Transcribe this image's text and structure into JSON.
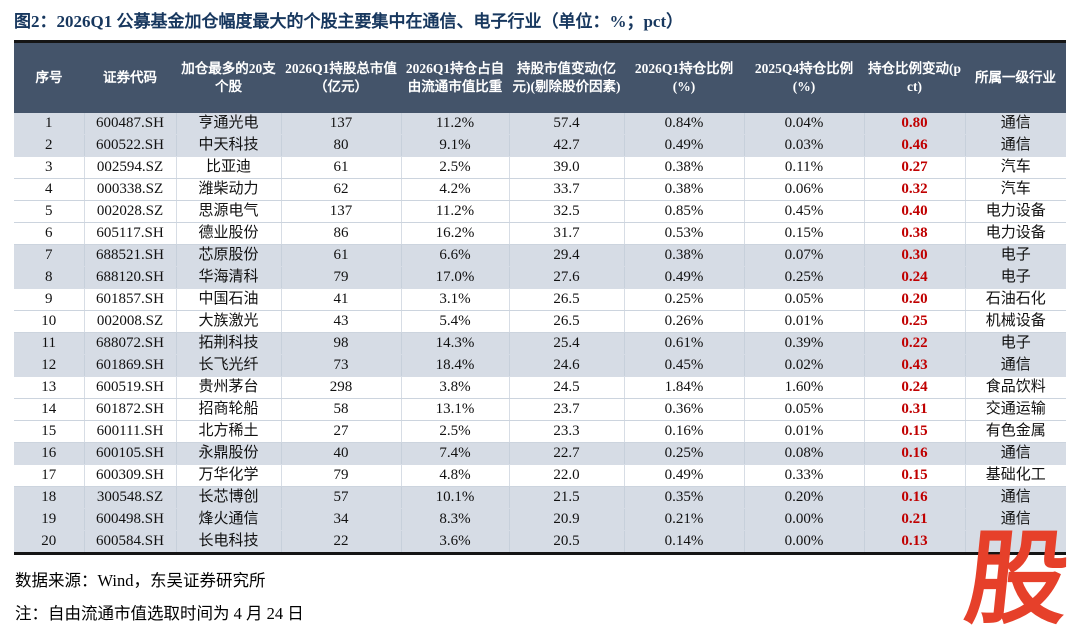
{
  "figure": {
    "title": "图2：2026Q1 公募基金加仓幅度最大的个股主要集中在通信、电子行业（单位：%；pct）",
    "source": "数据来源：Wind，东吴证券研究所",
    "note": "注：自由流通市值选取时间为 4 月 24 日",
    "logo_char": "股"
  },
  "colors": {
    "title_navy": "#17375E",
    "header_bg": "#44546A",
    "header_text": "#FFFFFF",
    "row_shaded": "#D6DCE5",
    "accent_red": "#C00000",
    "logo_red": "#E6402A"
  },
  "table": {
    "column_keys": [
      "no",
      "code",
      "name",
      "mktcap",
      "free_float_pct",
      "mv_change",
      "q1_pct",
      "q4_pct",
      "change_pct",
      "industry"
    ],
    "columns": [
      {
        "key": "no",
        "label": "序号"
      },
      {
        "key": "code",
        "label": "证券代码"
      },
      {
        "key": "name",
        "label": "加仓最多的20支个股"
      },
      {
        "key": "mktcap",
        "label": "2026Q1持股总市值（亿元）"
      },
      {
        "key": "free_float_pct",
        "label": "2026Q1持仓占自由流通市值比重"
      },
      {
        "key": "mv_change",
        "label": "持股市值变动(亿元)(剔除股价因素)"
      },
      {
        "key": "q1_pct",
        "label": "2026Q1持仓比例(%)"
      },
      {
        "key": "q4_pct",
        "label": "2025Q4持仓比例(%)"
      },
      {
        "key": "change_pct",
        "label": "持仓比例变动(pct)"
      },
      {
        "key": "industry",
        "label": "所属一级行业"
      }
    ],
    "rows": [
      {
        "no": "1",
        "code": "600487.SH",
        "name": "亨通光电",
        "mktcap": "137",
        "free_float_pct": "11.2%",
        "mv_change": "57.4",
        "q1_pct": "0.84%",
        "q4_pct": "0.04%",
        "change_pct": "0.80",
        "industry": "通信",
        "shaded": true
      },
      {
        "no": "2",
        "code": "600522.SH",
        "name": "中天科技",
        "mktcap": "80",
        "free_float_pct": "9.1%",
        "mv_change": "42.7",
        "q1_pct": "0.49%",
        "q4_pct": "0.03%",
        "change_pct": "0.46",
        "industry": "通信",
        "shaded": true
      },
      {
        "no": "3",
        "code": "002594.SZ",
        "name": "比亚迪",
        "mktcap": "61",
        "free_float_pct": "2.5%",
        "mv_change": "39.0",
        "q1_pct": "0.38%",
        "q4_pct": "0.11%",
        "change_pct": "0.27",
        "industry": "汽车",
        "shaded": false
      },
      {
        "no": "4",
        "code": "000338.SZ",
        "name": "潍柴动力",
        "mktcap": "62",
        "free_float_pct": "4.2%",
        "mv_change": "33.7",
        "q1_pct": "0.38%",
        "q4_pct": "0.06%",
        "change_pct": "0.32",
        "industry": "汽车",
        "shaded": false
      },
      {
        "no": "5",
        "code": "002028.SZ",
        "name": "思源电气",
        "mktcap": "137",
        "free_float_pct": "11.2%",
        "mv_change": "32.5",
        "q1_pct": "0.85%",
        "q4_pct": "0.45%",
        "change_pct": "0.40",
        "industry": "电力设备",
        "shaded": false
      },
      {
        "no": "6",
        "code": "605117.SH",
        "name": "德业股份",
        "mktcap": "86",
        "free_float_pct": "16.2%",
        "mv_change": "31.7",
        "q1_pct": "0.53%",
        "q4_pct": "0.15%",
        "change_pct": "0.38",
        "industry": "电力设备",
        "shaded": false
      },
      {
        "no": "7",
        "code": "688521.SH",
        "name": "芯原股份",
        "mktcap": "61",
        "free_float_pct": "6.6%",
        "mv_change": "29.4",
        "q1_pct": "0.38%",
        "q4_pct": "0.07%",
        "change_pct": "0.30",
        "industry": "电子",
        "shaded": true
      },
      {
        "no": "8",
        "code": "688120.SH",
        "name": "华海清科",
        "mktcap": "79",
        "free_float_pct": "17.0%",
        "mv_change": "27.6",
        "q1_pct": "0.49%",
        "q4_pct": "0.25%",
        "change_pct": "0.24",
        "industry": "电子",
        "shaded": true
      },
      {
        "no": "9",
        "code": "601857.SH",
        "name": "中国石油",
        "mktcap": "41",
        "free_float_pct": "3.1%",
        "mv_change": "26.5",
        "q1_pct": "0.25%",
        "q4_pct": "0.05%",
        "change_pct": "0.20",
        "industry": "石油石化",
        "shaded": false
      },
      {
        "no": "10",
        "code": "002008.SZ",
        "name": "大族激光",
        "mktcap": "43",
        "free_float_pct": "5.4%",
        "mv_change": "26.5",
        "q1_pct": "0.26%",
        "q4_pct": "0.01%",
        "change_pct": "0.25",
        "industry": "机械设备",
        "shaded": false
      },
      {
        "no": "11",
        "code": "688072.SH",
        "name": "拓荆科技",
        "mktcap": "98",
        "free_float_pct": "14.3%",
        "mv_change": "25.4",
        "q1_pct": "0.61%",
        "q4_pct": "0.39%",
        "change_pct": "0.22",
        "industry": "电子",
        "shaded": true
      },
      {
        "no": "12",
        "code": "601869.SH",
        "name": "长飞光纤",
        "mktcap": "73",
        "free_float_pct": "18.4%",
        "mv_change": "24.6",
        "q1_pct": "0.45%",
        "q4_pct": "0.02%",
        "change_pct": "0.43",
        "industry": "通信",
        "shaded": true
      },
      {
        "no": "13",
        "code": "600519.SH",
        "name": "贵州茅台",
        "mktcap": "298",
        "free_float_pct": "3.8%",
        "mv_change": "24.5",
        "q1_pct": "1.84%",
        "q4_pct": "1.60%",
        "change_pct": "0.24",
        "industry": "食品饮料",
        "shaded": false
      },
      {
        "no": "14",
        "code": "601872.SH",
        "name": "招商轮船",
        "mktcap": "58",
        "free_float_pct": "13.1%",
        "mv_change": "23.7",
        "q1_pct": "0.36%",
        "q4_pct": "0.05%",
        "change_pct": "0.31",
        "industry": "交通运输",
        "shaded": false
      },
      {
        "no": "15",
        "code": "600111.SH",
        "name": "北方稀土",
        "mktcap": "27",
        "free_float_pct": "2.5%",
        "mv_change": "23.3",
        "q1_pct": "0.16%",
        "q4_pct": "0.01%",
        "change_pct": "0.15",
        "industry": "有色金属",
        "shaded": false
      },
      {
        "no": "16",
        "code": "600105.SH",
        "name": "永鼎股份",
        "mktcap": "40",
        "free_float_pct": "7.4%",
        "mv_change": "22.7",
        "q1_pct": "0.25%",
        "q4_pct": "0.08%",
        "change_pct": "0.16",
        "industry": "通信",
        "shaded": true
      },
      {
        "no": "17",
        "code": "600309.SH",
        "name": "万华化学",
        "mktcap": "79",
        "free_float_pct": "4.8%",
        "mv_change": "22.0",
        "q1_pct": "0.49%",
        "q4_pct": "0.33%",
        "change_pct": "0.15",
        "industry": "基础化工",
        "shaded": false
      },
      {
        "no": "18",
        "code": "300548.SZ",
        "name": "长芯博创",
        "mktcap": "57",
        "free_float_pct": "10.1%",
        "mv_change": "21.5",
        "q1_pct": "0.35%",
        "q4_pct": "0.20%",
        "change_pct": "0.16",
        "industry": "通信",
        "shaded": true
      },
      {
        "no": "19",
        "code": "600498.SH",
        "name": "烽火通信",
        "mktcap": "34",
        "free_float_pct": "8.3%",
        "mv_change": "20.9",
        "q1_pct": "0.21%",
        "q4_pct": "0.00%",
        "change_pct": "0.21",
        "industry": "通信",
        "shaded": true
      },
      {
        "no": "20",
        "code": "600584.SH",
        "name": "长电科技",
        "mktcap": "22",
        "free_float_pct": "3.6%",
        "mv_change": "20.5",
        "q1_pct": "0.14%",
        "q4_pct": "0.00%",
        "change_pct": "0.13",
        "industry": "",
        "shaded": true
      }
    ]
  }
}
